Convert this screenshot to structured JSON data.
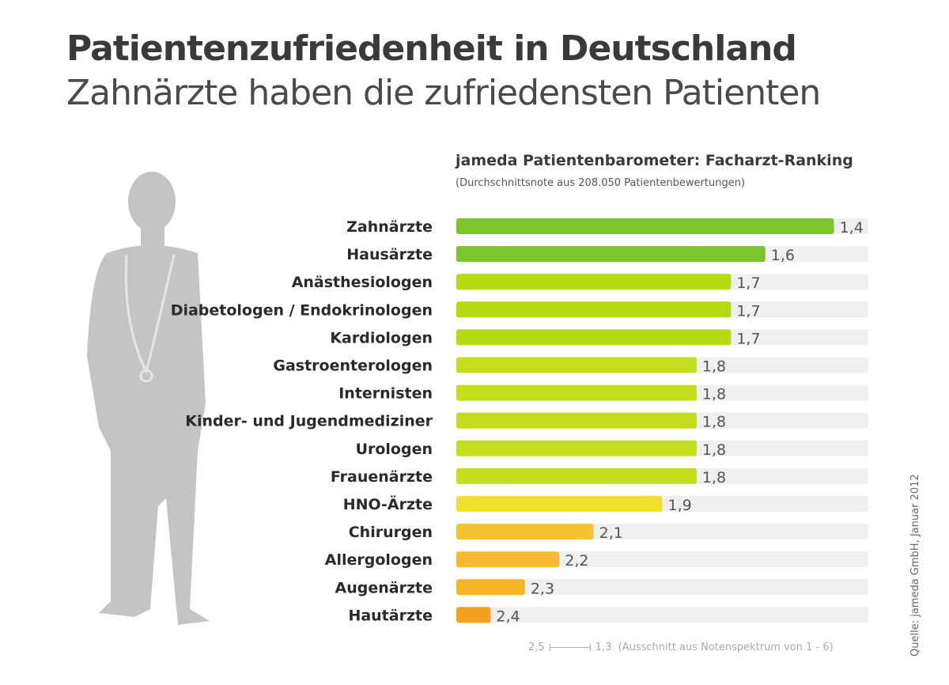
{
  "title": "Patientenzufriedenheit in Deutschland",
  "subtitle": "Zahnärzte haben die zufriedensten Patienten",
  "source": "Quelle: jameda GmbH, Januar 2012",
  "chart_data": {
    "type": "bar",
    "orientation": "horizontal",
    "title": "jameda Patientenbarometer: Facharzt-Ranking",
    "subtitle": "(Durchschnittsnote aus 208.050 Patientenbewertungen)",
    "categories": [
      "Zahnärzte",
      "Hausärzte",
      "Anästhesiologen",
      "Diabetologen / Endokrinologen",
      "Kardiologen",
      "Gastroenterologen",
      "Internisten",
      "Kinder- und Jugendmediziner",
      "Urologen",
      "Frauenärzte",
      "HNO-Ärzte",
      "Chirurgen",
      "Allergologen",
      "Augenärzte",
      "Hautärzte"
    ],
    "values": [
      1.4,
      1.6,
      1.7,
      1.7,
      1.7,
      1.8,
      1.8,
      1.8,
      1.8,
      1.8,
      1.9,
      2.1,
      2.2,
      2.3,
      2.4
    ],
    "value_labels": [
      "1,4",
      "1,6",
      "1,7",
      "1,7",
      "1,7",
      "1,8",
      "1,8",
      "1,8",
      "1,8",
      "1,8",
      "1,9",
      "2,1",
      "2,2",
      "2,3",
      "2,4"
    ],
    "colors": [
      "#7cc52a",
      "#7cc52a",
      "#b4dc0e",
      "#b4dc0e",
      "#b4dc0e",
      "#c3df1c",
      "#c3df1c",
      "#c3df1c",
      "#c3df1c",
      "#c3df1c",
      "#f1e12e",
      "#f6c230",
      "#f6ba2c",
      "#f6b524",
      "#f6a11c"
    ],
    "xlim": [
      2.5,
      1.3
    ],
    "scale_note": {
      "from": "2,5",
      "to": "1,3",
      "text": "(Ausschnitt aus Notenspektrum von 1 - 6)"
    },
    "track_color": "#efefef"
  }
}
